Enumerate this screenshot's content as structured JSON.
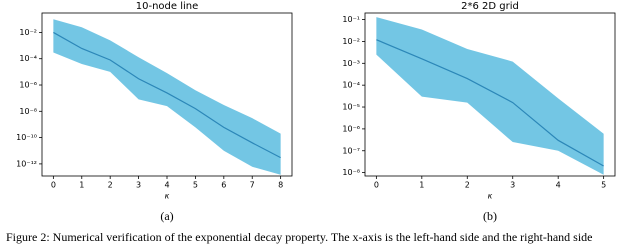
{
  "chart_data": [
    {
      "type": "line",
      "title": "10-node line",
      "xlabel": "κ",
      "x": [
        0,
        1,
        2,
        3,
        4,
        5,
        6,
        7,
        8
      ],
      "series": [
        {
          "color": "#2c87b8",
          "values": [
            0.01,
            0.0006,
            8e-05,
            3e-06,
            2.5e-07,
            1.6e-08,
            6e-10,
            4e-11,
            3e-12
          ]
        }
      ],
      "band": {
        "color": "#6cc3e3",
        "upper": [
          0.1,
          0.025,
          0.0025,
          0.00013,
          8e-06,
          4e-07,
          3e-08,
          3e-09,
          2e-10
        ],
        "lower": [
          0.0003,
          4e-05,
          1e-05,
          8e-08,
          2.5e-08,
          6e-10,
          1e-11,
          6e-13,
          1.5e-13
        ]
      },
      "log_y": true,
      "xlim": [
        -0.4,
        8.4
      ],
      "ylim": [
        0.3,
        1.2e-13
      ],
      "xticks": [
        0,
        1,
        2,
        3,
        4,
        5,
        6,
        7,
        8
      ],
      "yticks": [
        {
          "value": 0.01,
          "label": "10⁻²"
        },
        {
          "value": 0.0001,
          "label": "10⁻⁴"
        },
        {
          "value": 1e-06,
          "label": "10⁻⁶"
        },
        {
          "value": 1e-08,
          "label": "10⁻⁸"
        },
        {
          "value": 1e-10,
          "label": "10⁻¹⁰"
        },
        {
          "value": 1e-12,
          "label": "10⁻¹²"
        }
      ],
      "subcaption": "(a)"
    },
    {
      "type": "line",
      "title": "2*6 2D grid",
      "xlabel": "κ",
      "x": [
        0,
        1,
        2,
        3,
        4,
        5
      ],
      "series": [
        {
          "color": "#2c87b8",
          "values": [
            0.012,
            0.0016,
            0.0002,
            1.6e-05,
            3e-07,
            2e-08
          ]
        }
      ],
      "band": {
        "color": "#6cc3e3",
        "upper": [
          0.13,
          0.035,
          0.0045,
          0.0012,
          2.5e-05,
          6e-07
        ],
        "lower": [
          0.0025,
          3e-05,
          1.6e-05,
          2.5e-07,
          1e-07,
          8e-09
        ]
      },
      "log_y": true,
      "xlim": [
        -0.25,
        5.25
      ],
      "ylim": [
        0.2,
        7e-09
      ],
      "xticks": [
        0,
        1,
        2,
        3,
        4,
        5
      ],
      "yticks": [
        {
          "value": 0.1,
          "label": "10⁻¹"
        },
        {
          "value": 0.01,
          "label": "10⁻²"
        },
        {
          "value": 0.001,
          "label": "10⁻³"
        },
        {
          "value": 0.0001,
          "label": "10⁻⁴"
        },
        {
          "value": 1e-05,
          "label": "10⁻⁵"
        },
        {
          "value": 1e-06,
          "label": "10⁻⁶"
        },
        {
          "value": 1e-07,
          "label": "10⁻⁷"
        },
        {
          "value": 1e-08,
          "label": "10⁻⁸"
        }
      ],
      "subcaption": "(b)"
    }
  ],
  "caption": "Figure 2: Numerical verification of the exponential decay property. The x-axis is the left-hand side and the right-hand side"
}
